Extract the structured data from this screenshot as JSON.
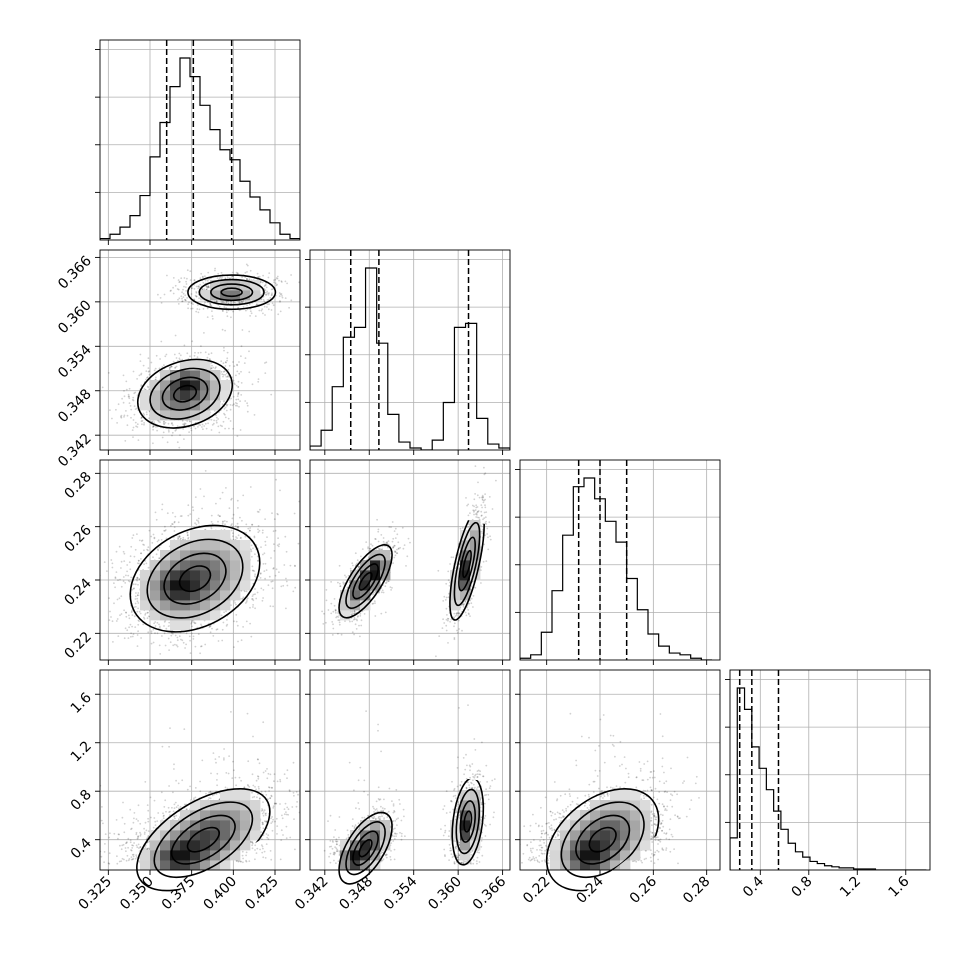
{
  "chart_data": {
    "type": "corner",
    "parameters": [
      {
        "range": [
          0.32,
          0.44
        ],
        "ticks": [
          "0.325",
          "0.350",
          "0.375",
          "0.400",
          "0.425"
        ],
        "tick_values": [
          0.325,
          0.35,
          0.375,
          0.4,
          0.425
        ],
        "quantiles": [
          0.36,
          0.376,
          0.399
        ],
        "hist_edges": [
          0.32,
          0.326,
          0.332,
          0.338,
          0.344,
          0.35,
          0.356,
          0.362,
          0.368,
          0.374,
          0.38,
          0.386,
          0.392,
          0.398,
          0.404,
          0.41,
          0.416,
          0.422,
          0.428,
          0.434,
          0.44
        ],
        "hist_counts": [
          1,
          4,
          9,
          17,
          31,
          58,
          82,
          107,
          127,
          114,
          94,
          77,
          63,
          56,
          41,
          30,
          21,
          12,
          4,
          1
        ]
      },
      {
        "range": [
          0.34,
          0.367
        ],
        "ticks": [
          "0.342",
          "0.348",
          "0.354",
          "0.360",
          "0.366"
        ],
        "tick_values": [
          0.342,
          0.348,
          0.354,
          0.36,
          0.366
        ],
        "quantiles": [
          0.3455,
          0.3493,
          0.3614
        ],
        "hist_edges": [
          0.34,
          0.3415,
          0.343,
          0.3445,
          0.346,
          0.3475,
          0.349,
          0.3505,
          0.352,
          0.3535,
          0.355,
          0.3565,
          0.358,
          0.3595,
          0.361,
          0.3625,
          0.364,
          0.3655,
          0.367
        ],
        "hist_counts": [
          2,
          10,
          32,
          57,
          62,
          92,
          54,
          18,
          4,
          1,
          0,
          5,
          24,
          62,
          64,
          16,
          3,
          1
        ]
      },
      {
        "range": [
          0.21,
          0.285
        ],
        "ticks": [
          "0.22",
          "0.24",
          "0.26",
          "0.28"
        ],
        "tick_values": [
          0.22,
          0.24,
          0.26,
          0.28
        ],
        "quantiles": [
          0.232,
          0.24,
          0.25
        ],
        "hist_edges": [
          0.21,
          0.214,
          0.218,
          0.222,
          0.226,
          0.23,
          0.234,
          0.238,
          0.242,
          0.246,
          0.25,
          0.254,
          0.258,
          0.262,
          0.266,
          0.27,
          0.274,
          0.278,
          0.282
        ],
        "hist_counts": [
          1,
          3,
          16,
          40,
          72,
          100,
          105,
          93,
          80,
          68,
          47,
          29,
          15,
          8,
          4,
          3,
          1,
          0
        ]
      },
      {
        "range": [
          0.15,
          1.8
        ],
        "ticks": [
          "0.4",
          "0.8",
          "1.2",
          "1.6"
        ],
        "tick_values": [
          0.4,
          0.8,
          1.2,
          1.6
        ],
        "quantiles": [
          0.23,
          0.33,
          0.55
        ],
        "hist_edges": [
          0.15,
          0.21,
          0.27,
          0.33,
          0.39,
          0.45,
          0.51,
          0.57,
          0.63,
          0.69,
          0.75,
          0.81,
          0.87,
          0.93,
          0.99,
          1.05,
          1.11,
          1.17,
          1.23,
          1.29,
          1.35,
          1.41,
          1.47,
          1.53,
          1.59,
          1.65,
          1.71,
          1.77
        ],
        "hist_counts": [
          30,
          170,
          150,
          115,
          95,
          75,
          55,
          38,
          25,
          17,
          12,
          8,
          6,
          4,
          3,
          2,
          2,
          1,
          1,
          1,
          0,
          0,
          0,
          0,
          0,
          0,
          0
        ]
      }
    ],
    "pairs": [
      {
        "col": 0,
        "row": 1,
        "blobs": [
          {
            "cx": 0.371,
            "cy": 0.3476,
            "sx": 0.0135,
            "sy": 0.0022,
            "rho": 0.25,
            "n": 900,
            "peak": [
              0.372,
              0.3492
            ]
          },
          {
            "cx": 0.399,
            "cy": 0.3613,
            "sx": 0.0125,
            "sy": 0.0011,
            "rho": 0.0,
            "n": 500,
            "peak": [
              0.398,
              0.3612
            ]
          }
        ]
      },
      {
        "col": 0,
        "row": 2,
        "blobs": [
          {
            "cx": 0.377,
            "cy": 0.2405,
            "sx": 0.0185,
            "sy": 0.0095,
            "rho": 0.3,
            "n": 1300,
            "peak": [
              0.366,
              0.2375
            ]
          }
        ]
      },
      {
        "col": 1,
        "row": 2,
        "blobs": [
          {
            "cx": 0.3475,
            "cy": 0.2395,
            "sx": 0.0017,
            "sy": 0.0065,
            "rho": 0.72,
            "n": 700,
            "peak": [
              0.3493,
              0.2435
            ]
          },
          {
            "cx": 0.3612,
            "cy": 0.246,
            "sx": 0.0011,
            "sy": 0.01,
            "rho": 0.7,
            "n": 500,
            "peak": [
              0.3612,
              0.242
            ]
          }
        ]
      },
      {
        "col": 0,
        "row": 3,
        "blobs": [
          {
            "cx": 0.382,
            "cy": 0.4,
            "sx": 0.019,
            "sy": 0.2,
            "rho": 0.55,
            "n": 1300,
            "peak": [
              0.366,
              0.25
            ]
          }
        ]
      },
      {
        "col": 1,
        "row": 3,
        "blobs": [
          {
            "cx": 0.3475,
            "cy": 0.33,
            "sx": 0.0017,
            "sy": 0.14,
            "rho": 0.6,
            "n": 700,
            "peak": [
              0.3455,
              0.25
            ]
          },
          {
            "cx": 0.3613,
            "cy": 0.55,
            "sx": 0.001,
            "sy": 0.17,
            "rho": 0.3,
            "n": 500,
            "peak": [
              0.3612,
              0.5
            ]
          }
        ]
      },
      {
        "col": 2,
        "row": 3,
        "blobs": [
          {
            "cx": 0.241,
            "cy": 0.4,
            "sx": 0.01,
            "sy": 0.2,
            "rho": 0.4,
            "n": 1300,
            "peak": [
              0.235,
              0.25
            ]
          }
        ]
      }
    ],
    "grid": true,
    "colors": {
      "ink": "#000000",
      "grid": "#b0b0b0",
      "points": "#000000"
    }
  }
}
